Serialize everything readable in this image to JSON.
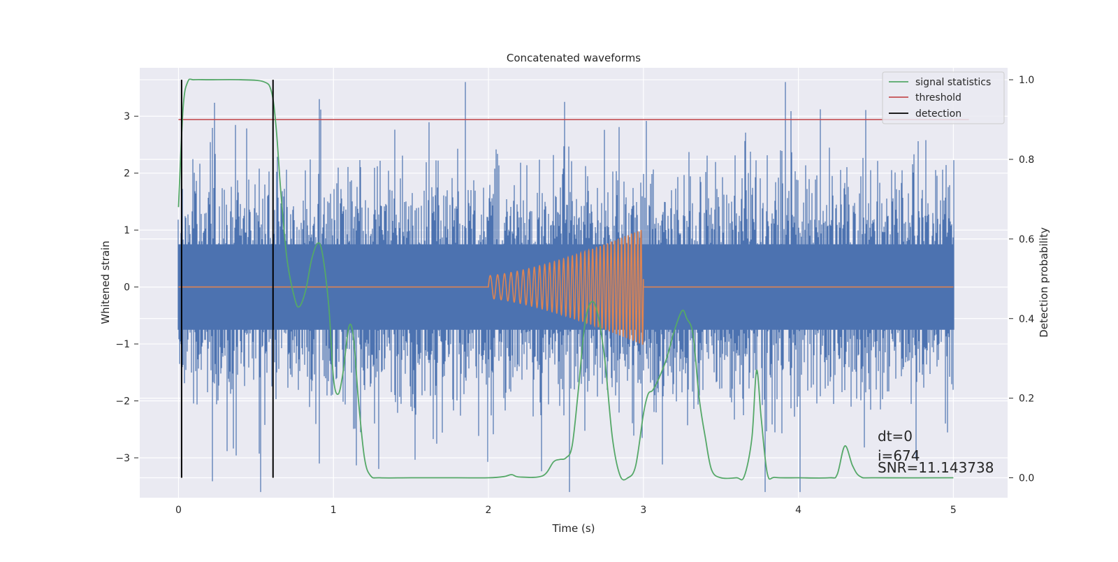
{
  "chart_data": {
    "type": "line",
    "title": "Concatenated waveforms",
    "xlabel": "Time (s)",
    "ylabel": "Whitened strain",
    "ylabel_right": "Detection probability",
    "xlim": [
      -0.25,
      5.35
    ],
    "ylim": [
      -3.7,
      3.85
    ],
    "ylim_right": [
      -0.05,
      1.03
    ],
    "x_ticks": [
      0,
      1,
      2,
      3,
      4,
      5
    ],
    "x_tick_labels": [
      "0",
      "1",
      "2",
      "3",
      "4",
      "5"
    ],
    "y_ticks": [
      -3,
      -2,
      -1,
      0,
      1,
      2,
      3
    ],
    "y_tick_labels": [
      "−3",
      "−2",
      "−1",
      "0",
      "1",
      "2",
      "3"
    ],
    "y_ticks_right": [
      0.0,
      0.2,
      0.4,
      0.6,
      0.8,
      1.0
    ],
    "y_tick_labels_right": [
      "0.0",
      "0.2",
      "0.4",
      "0.6",
      "0.8",
      "1.0"
    ],
    "grid": true,
    "legend_position": "top-right",
    "noise": {
      "x_range": [
        0,
        5
      ],
      "envelope_abs_max": 3.6,
      "typical_band": [
        -2.3,
        2.3
      ],
      "color": "#4c72b0"
    },
    "series": [
      {
        "name": "signal statistics",
        "axis": "right",
        "color": "#55a868",
        "x": [
          0,
          0.03,
          0.06,
          0.1,
          0.2,
          0.4,
          0.55,
          0.6,
          0.63,
          0.66,
          0.7,
          0.75,
          0.78,
          0.82,
          0.86,
          0.9,
          0.93,
          0.97,
          1.0,
          1.03,
          1.06,
          1.1,
          1.13,
          1.16,
          1.2,
          1.24,
          1.3,
          1.5,
          1.8,
          2.0,
          2.1,
          2.15,
          2.2,
          2.35,
          2.42,
          2.46,
          2.5,
          2.54,
          2.58,
          2.62,
          2.66,
          2.7,
          2.75,
          2.8,
          2.85,
          2.9,
          2.95,
          3.0,
          3.03,
          3.06,
          3.1,
          3.15,
          3.2,
          3.25,
          3.28,
          3.32,
          3.36,
          3.4,
          3.44,
          3.5,
          3.6,
          3.65,
          3.7,
          3.73,
          3.76,
          3.8,
          3.85,
          4.0,
          4.2,
          4.25,
          4.3,
          4.35,
          4.4,
          4.5,
          5.0
        ],
        "y": [
          0.68,
          0.93,
          0.995,
          1.0,
          1.0,
          1.0,
          0.995,
          0.97,
          0.88,
          0.72,
          0.55,
          0.45,
          0.43,
          0.47,
          0.55,
          0.59,
          0.56,
          0.43,
          0.25,
          0.21,
          0.26,
          0.38,
          0.35,
          0.2,
          0.05,
          0.005,
          0.0,
          0.0,
          0.0,
          0.0,
          0.003,
          0.008,
          0.002,
          0.005,
          0.04,
          0.046,
          0.05,
          0.08,
          0.22,
          0.38,
          0.44,
          0.42,
          0.3,
          0.1,
          0.005,
          0.0,
          0.03,
          0.16,
          0.21,
          0.22,
          0.25,
          0.3,
          0.37,
          0.42,
          0.4,
          0.36,
          0.2,
          0.1,
          0.02,
          0.0,
          0.0,
          0.003,
          0.1,
          0.27,
          0.15,
          0.01,
          0.001,
          0.0,
          0.0,
          0.008,
          0.08,
          0.03,
          0.003,
          0.0,
          0.0
        ]
      },
      {
        "name": "threshold",
        "axis": "right",
        "color": "#c44e52",
        "x": [
          0,
          5.1
        ],
        "y": [
          0.9,
          0.9
        ]
      },
      {
        "name": "detection",
        "axis": "right",
        "color": "#000000",
        "type": "vlines",
        "x": [
          0.02,
          0.61
        ],
        "y": [
          0.0,
          1.0
        ]
      },
      {
        "name": "",
        "axis": "left",
        "color": "#dd8452",
        "type": "chirp",
        "baseline_x": [
          0,
          5
        ],
        "chirp_x": [
          2.0,
          3.0
        ],
        "chirp_amplitude": [
          0.2,
          1.02
        ],
        "chirp_frequency_hz": [
          20,
          50
        ]
      }
    ],
    "annotations": [
      "dt=0",
      "i=674",
      "SNR=11.143738"
    ]
  },
  "colors": {
    "plot_bg": "#eaeaf2",
    "grid": "#ffffff",
    "noise": "#4c72b0",
    "signal_statistics": "#55a868",
    "threshold": "#c44e52",
    "detection": "#000000",
    "waveform": "#dd8452"
  }
}
